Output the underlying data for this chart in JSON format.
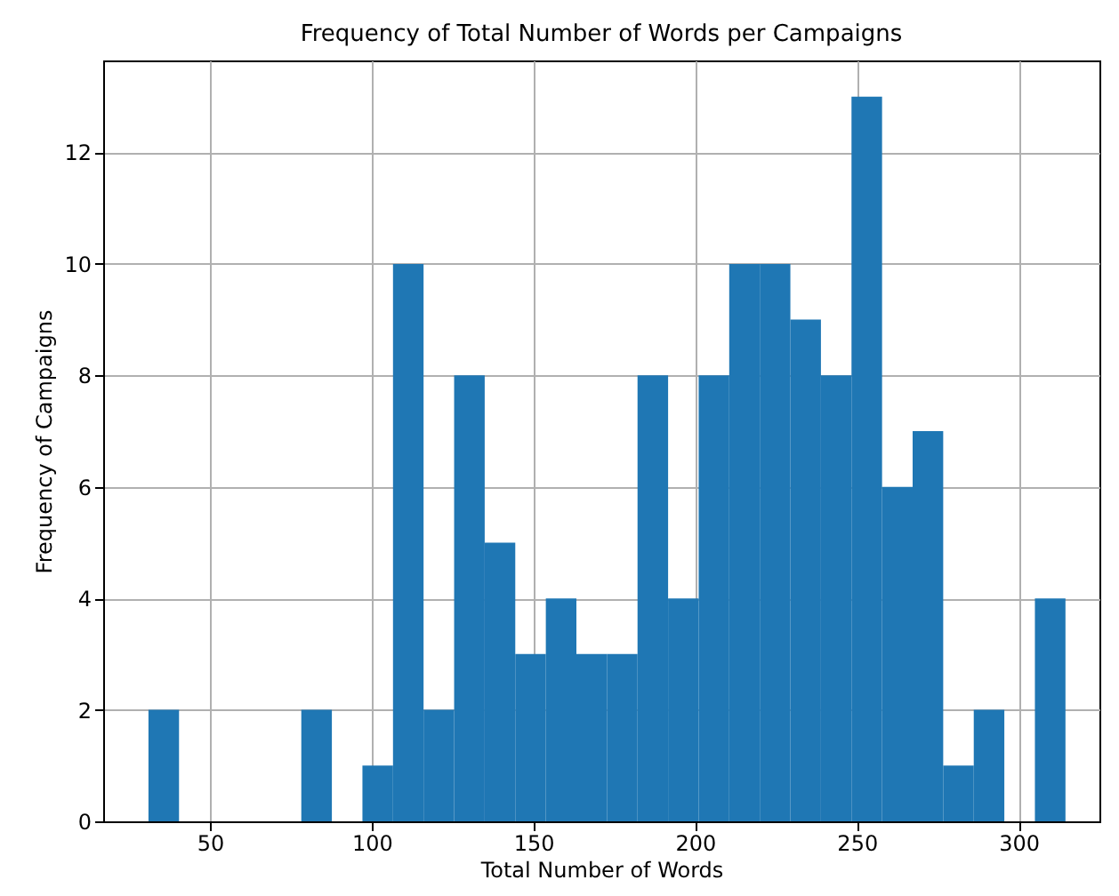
{
  "chart_data": {
    "type": "histogram",
    "title": "Frequency of Total Number of Words per Campaigns",
    "xlabel": "Total Number of Words",
    "ylabel": "Frequency of Campaigns",
    "bins": [
      31,
      40.45,
      49.9,
      59.35,
      68.8,
      78.25,
      87.7,
      97.15,
      106.6,
      116.05,
      125.5,
      134.95,
      144.4,
      153.85,
      163.3,
      172.75,
      182.2,
      191.65,
      201.1,
      210.55,
      220,
      229.45,
      238.9,
      248.35,
      257.8,
      267.25,
      276.7,
      286.15,
      295.6,
      305.05,
      314.5
    ],
    "values": [
      2,
      0,
      0,
      0,
      0,
      2,
      0,
      1,
      10,
      2,
      8,
      5,
      3,
      4,
      3,
      3,
      8,
      4,
      8,
      10,
      10,
      9,
      8,
      13,
      6,
      7,
      1,
      2,
      0,
      4
    ],
    "color": "#1f77b4",
    "xlim": [
      17,
      325
    ],
    "ylim": [
      0,
      13.65
    ],
    "xticks": [
      50,
      100,
      150,
      200,
      250,
      300
    ],
    "yticks": [
      0,
      2,
      4,
      6,
      8,
      10,
      12
    ],
    "grid": true
  }
}
